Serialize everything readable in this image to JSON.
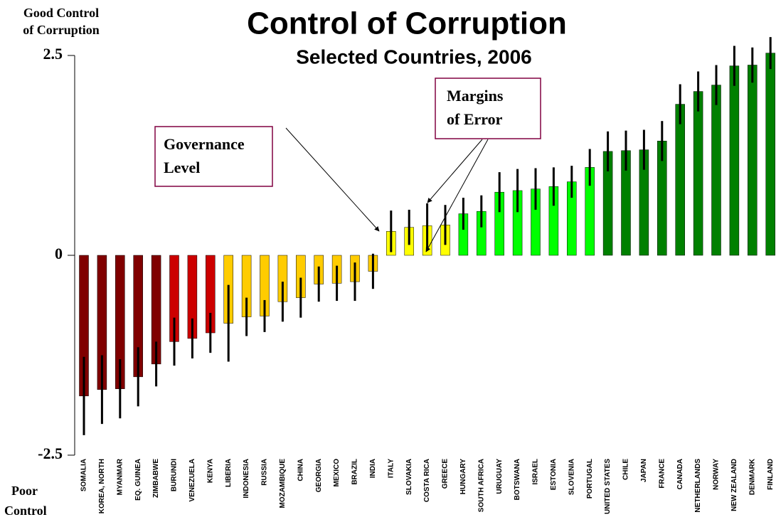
{
  "chart_data": {
    "type": "bar",
    "title": "Control of Corruption",
    "subtitle": "Selected Countries, 2006",
    "y_label_top": [
      "Good Control",
      "of Corruption"
    ],
    "y_label_bottom": [
      "Poor",
      "Control"
    ],
    "annotations": [
      {
        "lines": [
          "Governance",
          "Level"
        ]
      },
      {
        "lines": [
          "Margins",
          "of Error"
        ]
      }
    ],
    "categories": [
      "SOMALIA",
      "KOREA, NORTH",
      "MYANMAR",
      "EQ. GUINEA",
      "ZIMBABWE",
      "BURUNDI",
      "VENEZUELA",
      "KENYA",
      "LIBERIA",
      "INDONESIA",
      "RUSSIA",
      "MOZAMBIQUE",
      "CHINA",
      "GEORGIA",
      "MEXICO",
      "BRAZIL",
      "INDIA",
      "ITALY",
      "SLOVAKIA",
      "COSTA RICA",
      "GREECE",
      "HUNGARY",
      "SOUTH AFRICA",
      "URUGUAY",
      "BOTSWANA",
      "ISRAEL",
      "ESTONIA",
      "SLOVENIA",
      "PORTUGAL",
      "UNITED STATES",
      "CHILE",
      "JAPAN",
      "FRANCE",
      "CANADA",
      "NETHERLANDS",
      "NORWAY",
      "NEW ZEALAND",
      "DENMARK",
      "FINLAND"
    ],
    "values": [
      -1.76,
      -1.68,
      -1.67,
      -1.52,
      -1.36,
      -1.08,
      -1.04,
      -0.97,
      -0.85,
      -0.77,
      -0.76,
      -0.58,
      -0.53,
      -0.36,
      -0.35,
      -0.33,
      -0.2,
      0.3,
      0.35,
      0.37,
      0.38,
      0.52,
      0.55,
      0.79,
      0.81,
      0.83,
      0.86,
      0.92,
      1.1,
      1.3,
      1.31,
      1.32,
      1.43,
      1.89,
      2.05,
      2.13,
      2.37,
      2.38,
      2.53
    ],
    "errors": [
      0.49,
      0.43,
      0.37,
      0.37,
      0.28,
      0.3,
      0.25,
      0.25,
      0.48,
      0.24,
      0.2,
      0.25,
      0.25,
      0.22,
      0.22,
      0.24,
      0.22,
      0.26,
      0.22,
      0.28,
      0.25,
      0.2,
      0.2,
      0.25,
      0.27,
      0.26,
      0.24,
      0.2,
      0.23,
      0.25,
      0.25,
      0.25,
      0.25,
      0.25,
      0.25,
      0.25,
      0.25,
      0.22,
      0.2
    ],
    "colors": [
      "#800000",
      "#800000",
      "#800000",
      "#800000",
      "#800000",
      "#cc0000",
      "#cc0000",
      "#cc0000",
      "#ffcc00",
      "#ffcc00",
      "#ffcc00",
      "#ffcc00",
      "#ffcc00",
      "#ffcc00",
      "#ffcc00",
      "#ffcc00",
      "#ffcc00",
      "#ffff00",
      "#ffff00",
      "#ffff00",
      "#ffff00",
      "#00ff00",
      "#00ff00",
      "#00ff00",
      "#00ff00",
      "#00ff00",
      "#00ff00",
      "#00ff00",
      "#00ff00",
      "#008000",
      "#008000",
      "#008000",
      "#008000",
      "#008000",
      "#008000",
      "#008000",
      "#008000",
      "#008000",
      "#008000"
    ],
    "ylim": [
      -2.5,
      2.5
    ],
    "yticks": [
      -2.5,
      0,
      2.5
    ]
  }
}
